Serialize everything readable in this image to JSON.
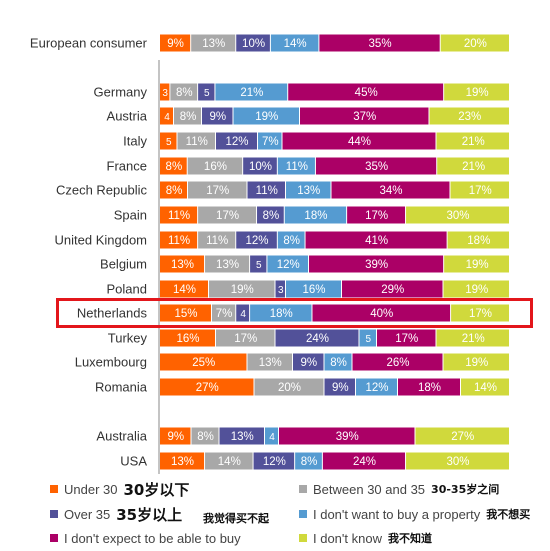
{
  "chart_data": {
    "type": "bar",
    "orientation": "horizontal",
    "stacked": true,
    "value_suffix": "%",
    "categories": [
      "European consumer",
      "Germany",
      "Austria",
      "Italy",
      "France",
      "Czech Republic",
      "Spain",
      "United Kingdom",
      "Belgium",
      "Poland",
      "Netherlands",
      "Turkey",
      "Luxembourg",
      "Romania",
      "Australia",
      "USA"
    ],
    "series": [
      {
        "name": "Under 30",
        "color": "#ff6200",
        "values": [
          9,
          3,
          4,
          5,
          8,
          8,
          11,
          11,
          13,
          14,
          15,
          16,
          25,
          27,
          9,
          13
        ]
      },
      {
        "name": "Between 30 and 35",
        "color": "#a8a8a8",
        "values": [
          13,
          8,
          8,
          11,
          16,
          17,
          17,
          11,
          13,
          19,
          7,
          17,
          13,
          20,
          8,
          14
        ]
      },
      {
        "name": "Over 35",
        "color": "#525199",
        "values": [
          10,
          5,
          9,
          12,
          10,
          11,
          8,
          12,
          5,
          3,
          4,
          24,
          9,
          9,
          13,
          12
        ]
      },
      {
        "name": "I don't want to buy a property",
        "color": "#559bd1",
        "values": [
          14,
          21,
          19,
          7,
          11,
          13,
          18,
          8,
          12,
          16,
          18,
          5,
          8,
          12,
          4,
          8
        ]
      },
      {
        "name": "I don't expect to be able to buy",
        "color": "#ab0066",
        "values": [
          35,
          45,
          37,
          44,
          35,
          34,
          17,
          41,
          39,
          29,
          40,
          17,
          26,
          18,
          39,
          24
        ]
      },
      {
        "name": "I don't know",
        "color": "#d0d93c",
        "values": [
          20,
          19,
          23,
          21,
          21,
          17,
          30,
          18,
          19,
          19,
          17,
          21,
          19,
          14,
          27,
          30
        ]
      }
    ],
    "highlighted_category": "Netherlands",
    "grid": false,
    "legend_position": "bottom"
  },
  "legend": [
    {
      "label": "Under 30",
      "cn": "30岁以下",
      "cn_size": "big"
    },
    {
      "label": "Between 30 and 35",
      "cn": "30-35岁之间",
      "cn_size": "small"
    },
    {
      "label": "Over 35",
      "cn": "35岁以上",
      "cn_size": "big"
    },
    {
      "label": "I don't want to buy a property",
      "cn": "我不想买",
      "cn_size": "small"
    },
    {
      "label": "I don't expect to be able to buy",
      "cn": "",
      "cn_size": "small"
    },
    {
      "label": "I don't know",
      "cn": "我不知道",
      "cn_size": "small"
    }
  ],
  "annotation_cn": "我觉得买不起"
}
